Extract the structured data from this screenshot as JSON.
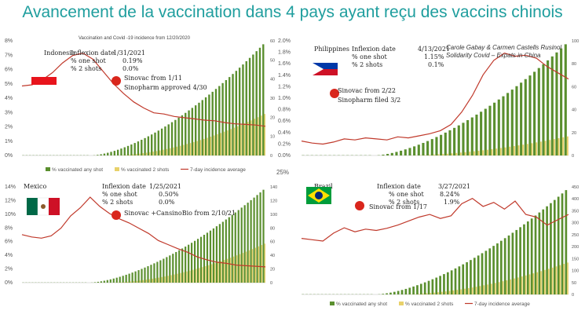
{
  "title": "Avancement de la vaccination dans 4 pays ayant reçu des vaccins chinois",
  "credit": [
    "Carole Gabay & Carmen Castells Rusinol",
    "Solidarity Covid – Expats in China"
  ],
  "legend": {
    "any": "% vaccinated any shot",
    "two": "% vaccinated 2 shots",
    "incidence": "7-day incidence average"
  },
  "colors": {
    "any": "#5a8f2e",
    "two": "#e8d16a",
    "incidence": "#c0392b",
    "title": "#1f9e9e"
  },
  "chart_data": [
    {
      "type": "bar",
      "country": "Indonesia",
      "subtitle": "Vaccination and Covid -19 incidence from 12/20/2020",
      "inflexion_label": "Inflexion date",
      "inflexion_date": "1/31/2021",
      "one_shot_label": "% one shot",
      "one_shot": "0.19%",
      "two_shots_label": "% 2 shots",
      "two_shots": "0.0%",
      "notes": [
        "Sinovac from 1/11",
        "Sinopharm  approved 4/30"
      ],
      "left_axis": [
        "0%",
        "1%",
        "2%",
        "3%",
        "4%",
        "5%",
        "6%",
        "7%",
        "8%"
      ],
      "right_axis": [
        "0",
        "10",
        "20",
        "30",
        "40",
        "50",
        "60"
      ],
      "mid_axis": [
        "0.0%",
        "0.2%",
        "0.4%",
        "0.6%",
        "0.8%",
        "1.0%",
        "1.2%",
        "1.4%",
        "1.6%",
        "1.8%",
        "2.0%"
      ],
      "any_max": 7.5,
      "two_max": 2.8,
      "bars": 72,
      "incidence": [
        5.7,
        5.8,
        6.2,
        6.8,
        7.6,
        8.2,
        8.4,
        7.9,
        6.9,
        5.9,
        5.1,
        4.4,
        3.9,
        3.5,
        3.4,
        3.2,
        3.1,
        3.0,
        2.9,
        2.85,
        2.7,
        2.6,
        2.55,
        2.5,
        2.4
      ]
    },
    {
      "type": "bar",
      "country": "Philippines",
      "inflexion_label": "Inflexion date",
      "inflexion_date": "4/13/2021",
      "one_shot_label": "% one shot",
      "one_shot": "1.15%",
      "two_shots_label": "% 2 shots",
      "two_shots": "0.1%",
      "notes": [
        "Sinovac  from 2/22",
        "Sinopharm filed 3/2"
      ],
      "right_axis": [
        "0",
        "20",
        "40",
        "60",
        "80",
        "100"
      ],
      "any_max": 105,
      "two_max": 18,
      "bars": 60,
      "incidence": [
        14,
        12,
        11,
        13,
        16,
        15,
        17,
        16,
        15,
        18,
        17,
        19,
        21,
        24,
        30,
        42,
        58,
        78,
        92,
        99,
        96,
        97,
        94,
        86,
        80,
        74
      ]
    },
    {
      "type": "bar",
      "country": "Mexico",
      "inflexion_label": "Inflexion date",
      "inflexion_date": "1/25/2021",
      "one_shot_label": "% one shot",
      "one_shot": "0.50%",
      "two_shots_label": "% 2 shots",
      "two_shots": "0.0%",
      "notes": [
        "Sinovac +CansinoBio  from 2/10/21"
      ],
      "left_axis": [
        "0%",
        "2%",
        "4%",
        "6%",
        "8%",
        "10%",
        "12%",
        "14%"
      ],
      "right_axis": [
        "0",
        "20",
        "40",
        "60",
        "80",
        "100",
        "120",
        "140"
      ],
      "extra_tick": "25%",
      "any_max": 13.8,
      "two_max": 5.8,
      "bars": 78,
      "incidence": [
        8.2,
        7.8,
        7.6,
        8.0,
        9.3,
        11.4,
        12.8,
        14.6,
        13.0,
        11.8,
        10.9,
        10.2,
        9.3,
        8.4,
        7.2,
        6.5,
        5.8,
        5.2,
        4.4,
        3.9,
        3.5,
        3.3,
        3.0,
        2.9,
        2.8,
        2.7
      ]
    },
    {
      "type": "bar",
      "country": "Brazil",
      "inflexion_label": "Inflexion date",
      "inflexion_date": "3/27/2021",
      "one_shot_label": "% one shot",
      "one_shot": "8.24%",
      "two_shots_label": "% 2 shots",
      "two_shots": "1.9%",
      "notes": [
        "Sinovac from 1/17"
      ],
      "right_axis": [
        "0",
        "50",
        "100",
        "150",
        "200",
        "250",
        "300",
        "350",
        "400",
        "450"
      ],
      "any_max": 360,
      "two_max": 110,
      "bars": 70,
      "incidence": [
        210,
        205,
        200,
        230,
        250,
        235,
        245,
        240,
        248,
        260,
        275,
        290,
        300,
        285,
        295,
        340,
        360,
        330,
        345,
        320,
        350,
        300,
        290,
        260,
        280,
        300
      ]
    }
  ]
}
